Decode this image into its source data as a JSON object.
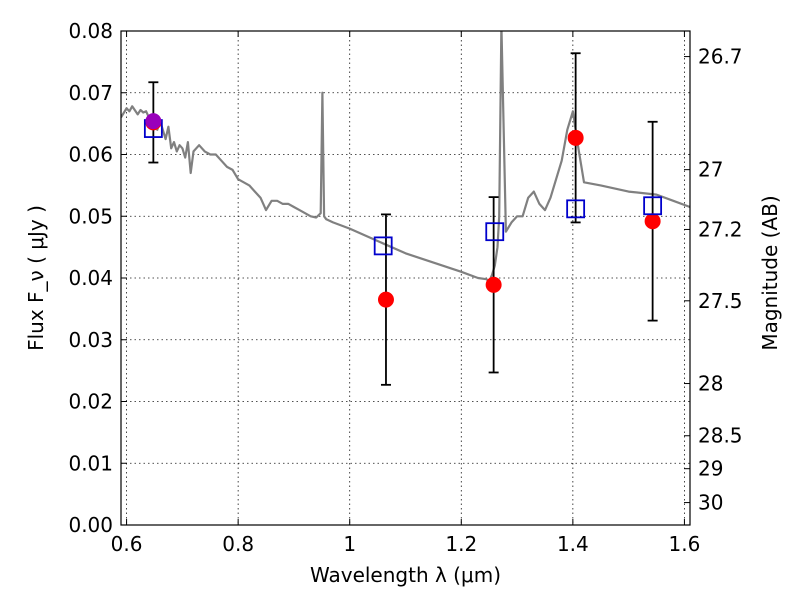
{
  "chart_data": {
    "type": "scatter",
    "xlabel": "Wavelength  λ (μm)",
    "ylabel": "Flux  F_ν  ( μJy )",
    "ylabel_right": "Magnitude (AB)",
    "xlim": [
      0.59,
      1.61
    ],
    "ylim": [
      0.0,
      0.08
    ],
    "xticks": [
      {
        "value": 0.6,
        "label": "0.6"
      },
      {
        "value": 0.8,
        "label": "0.8"
      },
      {
        "value": 1.0,
        "label": "1"
      },
      {
        "value": 1.2,
        "label": "1.2"
      },
      {
        "value": 1.4,
        "label": "1.4"
      },
      {
        "value": 1.6,
        "label": "1.6"
      }
    ],
    "yticks": [
      {
        "value": 0.0,
        "label": "0.00"
      },
      {
        "value": 0.01,
        "label": "0.01"
      },
      {
        "value": 0.02,
        "label": "0.02"
      },
      {
        "value": 0.03,
        "label": "0.03"
      },
      {
        "value": 0.04,
        "label": "0.04"
      },
      {
        "value": 0.05,
        "label": "0.05"
      },
      {
        "value": 0.06,
        "label": "0.06"
      },
      {
        "value": 0.07,
        "label": "0.07"
      },
      {
        "value": 0.08,
        "label": "0.08"
      }
    ],
    "right_ticks": [
      {
        "mag": 26.7,
        "label": "26.7"
      },
      {
        "mag": 27.0,
        "label": "27"
      },
      {
        "mag": 27.2,
        "label": "27.2"
      },
      {
        "mag": 27.5,
        "label": "27.5"
      },
      {
        "mag": 28.0,
        "label": "28"
      },
      {
        "mag": 28.5,
        "label": "28.5"
      },
      {
        "mag": 29.0,
        "label": "29"
      },
      {
        "mag": 30.0,
        "label": "30"
      }
    ],
    "grid": true,
    "colors": {
      "model_line": "#808080",
      "observed": "#ff0000",
      "model_points": "#0000cc",
      "highlight": "#9900bb",
      "errorbar": "#000000"
    },
    "model_spectrum": {
      "x": [
        0.59,
        0.6,
        0.605,
        0.61,
        0.62,
        0.625,
        0.63,
        0.635,
        0.64,
        0.645,
        0.65,
        0.655,
        0.66,
        0.665,
        0.67,
        0.675,
        0.68,
        0.685,
        0.69,
        0.695,
        0.7,
        0.705,
        0.71,
        0.715,
        0.72,
        0.73,
        0.74,
        0.75,
        0.76,
        0.77,
        0.78,
        0.79,
        0.8,
        0.81,
        0.82,
        0.83,
        0.84,
        0.845,
        0.85,
        0.86,
        0.87,
        0.88,
        0.89,
        0.9,
        0.91,
        0.92,
        0.93,
        0.94,
        0.948,
        0.951,
        0.954,
        0.958,
        0.97,
        1.0,
        1.05,
        1.1,
        1.15,
        1.2,
        1.23,
        1.245,
        1.25,
        1.255,
        1.26,
        1.265,
        1.268,
        1.272,
        1.28,
        1.29,
        1.3,
        1.31,
        1.32,
        1.33,
        1.34,
        1.35,
        1.36,
        1.37,
        1.38,
        1.39,
        1.4,
        1.41,
        1.42,
        1.45,
        1.5,
        1.55,
        1.58,
        1.61
      ],
      "y": [
        0.066,
        0.0675,
        0.067,
        0.0678,
        0.0665,
        0.0672,
        0.0668,
        0.067,
        0.066,
        0.065,
        0.0655,
        0.064,
        0.0655,
        0.064,
        0.0625,
        0.0645,
        0.061,
        0.062,
        0.0605,
        0.0615,
        0.061,
        0.0595,
        0.062,
        0.057,
        0.0605,
        0.0615,
        0.0605,
        0.06,
        0.06,
        0.059,
        0.058,
        0.0575,
        0.056,
        0.0555,
        0.055,
        0.054,
        0.053,
        0.052,
        0.051,
        0.0525,
        0.0525,
        0.052,
        0.052,
        0.0515,
        0.051,
        0.0505,
        0.05,
        0.0498,
        0.0505,
        0.07,
        0.05,
        0.0495,
        0.049,
        0.048,
        0.046,
        0.044,
        0.0425,
        0.041,
        0.04,
        0.0398,
        0.0395,
        0.0405,
        0.042,
        0.045,
        0.05,
        0.081,
        0.0475,
        0.049,
        0.05,
        0.05,
        0.053,
        0.054,
        0.052,
        0.051,
        0.053,
        0.056,
        0.059,
        0.064,
        0.067,
        0.061,
        0.0555,
        0.055,
        0.054,
        0.0535,
        0.0525,
        0.0515
      ]
    },
    "observed": [
      {
        "x": 0.648,
        "y": 0.0652,
        "yerr": 0.0065
      },
      {
        "x": 1.065,
        "y": 0.0365,
        "yerr": 0.0138
      },
      {
        "x": 1.258,
        "y": 0.0389,
        "yerr": 0.0142
      },
      {
        "x": 1.405,
        "y": 0.0627,
        "yerr": 0.0137
      },
      {
        "x": 1.543,
        "y": 0.0492,
        "yerr": 0.0161
      }
    ],
    "model_points": [
      {
        "x": 0.648,
        "y": 0.0642
      },
      {
        "x": 1.06,
        "y": 0.0452
      },
      {
        "x": 1.26,
        "y": 0.0475
      },
      {
        "x": 1.405,
        "y": 0.0512
      },
      {
        "x": 1.543,
        "y": 0.0517
      }
    ],
    "highlight_point": {
      "x": 0.648,
      "y": 0.0654
    }
  }
}
